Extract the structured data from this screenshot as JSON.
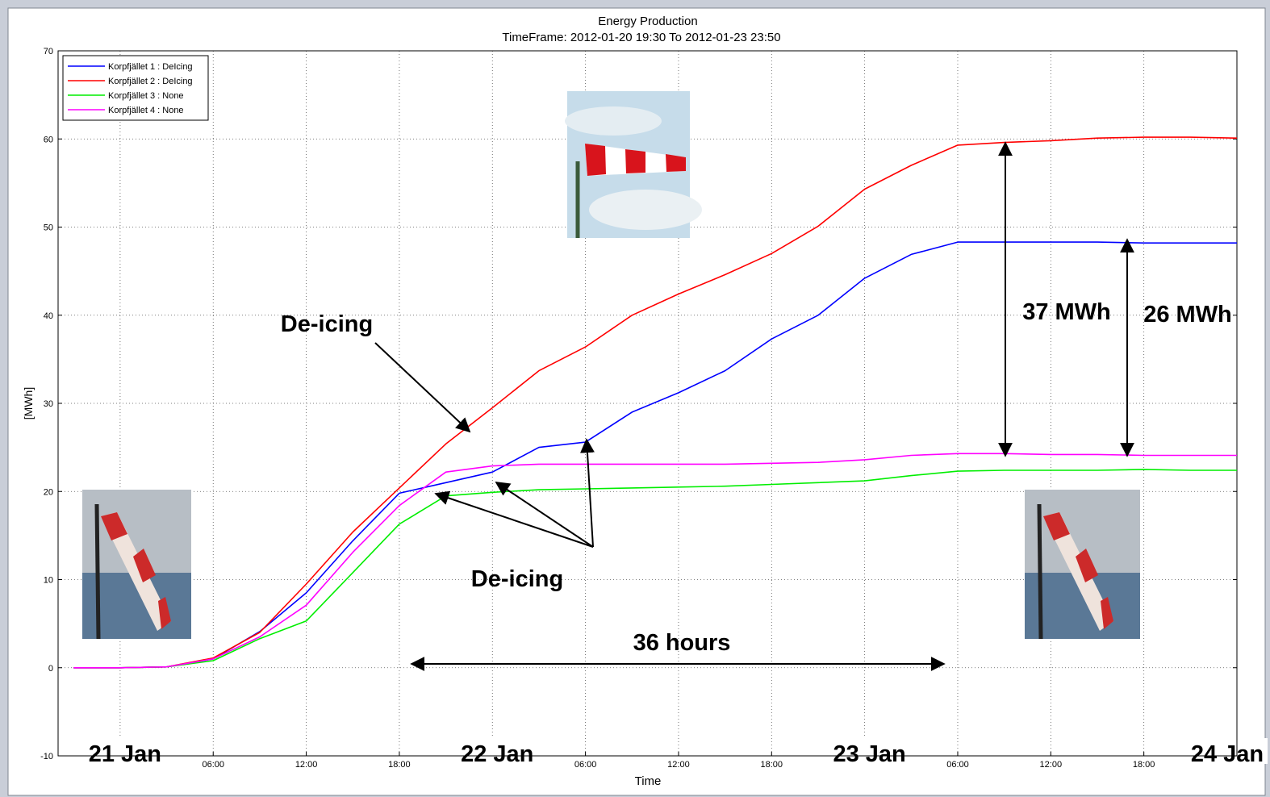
{
  "chart_data": {
    "type": "line",
    "title": "Energy Production",
    "subtitle": "TimeFrame: 2012-01-20 19:30 To 2012-01-23 23:50",
    "x_label": "Time",
    "y_label": "[MWh]",
    "x": [
      "2012-01-20T21:00",
      "2012-01-21T00:00",
      "2012-01-21T03:00",
      "2012-01-21T06:00",
      "2012-01-21T09:00",
      "2012-01-21T12:00",
      "2012-01-21T15:00",
      "2012-01-21T18:00",
      "2012-01-21T21:00",
      "2012-01-22T00:00",
      "2012-01-22T03:00",
      "2012-01-22T06:00",
      "2012-01-22T09:00",
      "2012-01-22T12:00",
      "2012-01-22T15:00",
      "2012-01-22T18:00",
      "2012-01-22T21:00",
      "2012-01-23T00:00",
      "2012-01-23T03:00",
      "2012-01-23T06:00",
      "2012-01-23T09:00",
      "2012-01-23T12:00",
      "2012-01-23T15:00",
      "2012-01-23T18:00",
      "2012-01-23T21:00",
      "2012-01-24T00:00"
    ],
    "series": [
      {
        "name": "Korpfjället 1 : DeIcing",
        "color": "#0000ff",
        "values": [
          0,
          0,
          0.1,
          1,
          4.1,
          8.5,
          14.4,
          19.8,
          21,
          22.2,
          25,
          25.6,
          29,
          31.2,
          33.7,
          37.3,
          40,
          44.2,
          46.9,
          48.3,
          48.3,
          48.3,
          48.3,
          48.2,
          48.2,
          48.2
        ]
      },
      {
        "name": "Korpfjället 2 : DeIcing",
        "color": "#ff0000",
        "values": [
          0,
          0,
          0.1,
          1.1,
          4,
          9.5,
          15.4,
          20.4,
          25.4,
          29.5,
          33.7,
          36.4,
          40,
          42.4,
          44.6,
          47,
          50.1,
          54.3,
          57,
          59.3,
          59.6,
          59.8,
          60.1,
          60.2,
          60.2,
          60.1
        ]
      },
      {
        "name": "Korpfjället 3 : None",
        "color": "#00ee00",
        "values": [
          0,
          0,
          0.1,
          0.8,
          3.3,
          5.3,
          10.8,
          16.3,
          19.5,
          19.9,
          20.2,
          20.3,
          20.4,
          20.5,
          20.6,
          20.8,
          21,
          21.2,
          21.8,
          22.3,
          22.4,
          22.4,
          22.4,
          22.5,
          22.4,
          22.4
        ]
      },
      {
        "name": "Korpfjället 4 : None",
        "color": "#ff00ff",
        "values": [
          0,
          0,
          0.1,
          1,
          3.5,
          7.1,
          13.1,
          18.4,
          22.2,
          22.9,
          23.1,
          23.1,
          23.1,
          23.1,
          23.1,
          23.2,
          23.3,
          23.6,
          24.1,
          24.3,
          24.3,
          24.2,
          24.2,
          24.1,
          24.1,
          24.1
        ]
      }
    ],
    "xlim": [
      "2012-01-20T20:00",
      "2012-01-24T00:00"
    ],
    "xticks": [
      {
        "value": "2012-01-21T06:00",
        "label": "06:00"
      },
      {
        "value": "2012-01-21T12:00",
        "label": "12:00"
      },
      {
        "value": "2012-01-21T18:00",
        "label": "18:00"
      },
      {
        "value": "2012-01-22T06:00",
        "label": "06:00"
      },
      {
        "value": "2012-01-22T12:00",
        "label": "12:00"
      },
      {
        "value": "2012-01-22T18:00",
        "label": "18:00"
      },
      {
        "value": "2012-01-23T06:00",
        "label": "06:00"
      },
      {
        "value": "2012-01-23T12:00",
        "label": "12:00"
      },
      {
        "value": "2012-01-23T18:00",
        "label": "18:00"
      }
    ],
    "day_ticks": [
      {
        "value": "2012-01-21T00:00",
        "label": "21 Jan"
      },
      {
        "value": "2012-01-22T00:00",
        "label": "22 Jan"
      },
      {
        "value": "2012-01-23T00:00",
        "label": "23 Jan"
      },
      {
        "value": "2012-01-24T00:00",
        "label": "24 Jan"
      }
    ],
    "ylim": [
      -10,
      70
    ],
    "yticks": [
      -10,
      0,
      10,
      20,
      30,
      40,
      50,
      60,
      70
    ],
    "grid": true,
    "legend": "top-left",
    "annotations": [
      "De-icing",
      "De-icing",
      "37 MWh",
      "26 MWh",
      "36 hours"
    ]
  }
}
